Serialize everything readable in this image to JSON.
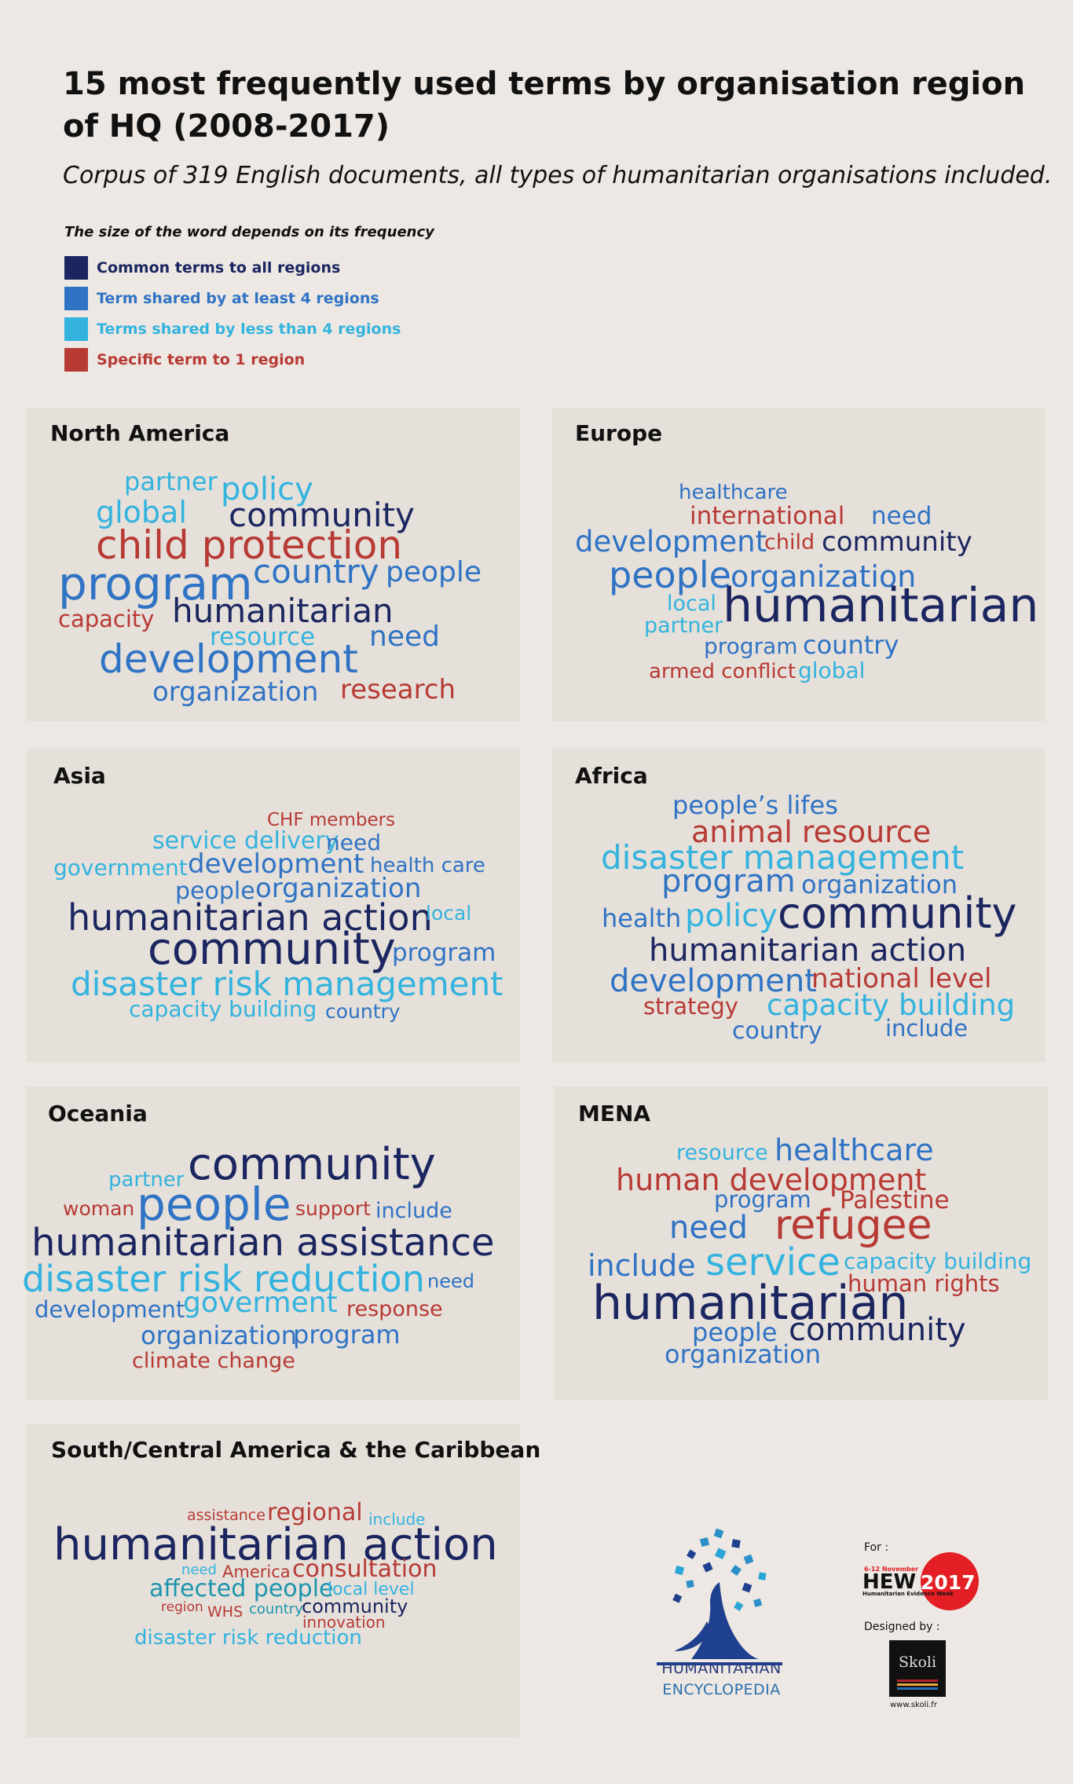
{
  "header": {
    "title": "15 most frequently used terms by organisation region of HQ (2008-2017)",
    "subtitle": "Corpus of 319 English documents, all types of humanitarian organisations included."
  },
  "legend": {
    "note": "The size of the word depends on its frequency",
    "items": [
      {
        "label": "Common terms to all regions",
        "color": "#1b2660"
      },
      {
        "label": "Term shared by at least 4 regions",
        "color": "#2f73c4"
      },
      {
        "label": "Terms shared by less than 4 regions",
        "color": "#33b3de"
      },
      {
        "label": "Specific term to 1 region",
        "color": "#b73a35"
      }
    ]
  },
  "panels": {
    "north_america": {
      "title": "North America",
      "words": [
        "partner",
        "policy",
        "global",
        "community",
        "child protection",
        "program",
        "country",
        "people",
        "capacity",
        "humanitarian",
        "resource",
        "need",
        "development",
        "organization",
        "research"
      ]
    },
    "europe": {
      "title": "Europe",
      "words": [
        "healthcare",
        "international",
        "need",
        "development",
        "child",
        "community",
        "people",
        "organization",
        "local",
        "partner",
        "humanitarian",
        "program",
        "country",
        "armed conflict",
        "global"
      ]
    },
    "asia": {
      "title": "Asia",
      "words": [
        "CHF members",
        "service delivery",
        "need",
        "government",
        "development",
        "health care",
        "people",
        "organization",
        "humanitarian action",
        "local",
        "community",
        "program",
        "disaster risk management",
        "capacity building",
        "country"
      ]
    },
    "africa": {
      "title": "Africa",
      "words": [
        "people’s lifes",
        "animal resource",
        "disaster management",
        "program",
        "organization",
        "health",
        "policy",
        "community",
        "humanitarian action",
        "development",
        "national level",
        "strategy",
        "capacity building",
        "country",
        "include"
      ]
    },
    "oceania": {
      "title": "Oceania",
      "words": [
        "partner",
        "community",
        "woman",
        "people",
        "support",
        "include",
        "humanitarian assistance",
        "disaster risk reduction",
        "need",
        "development",
        "goverment",
        "response",
        "organization",
        "program",
        "climate change"
      ]
    },
    "mena": {
      "title": "MENA",
      "words": [
        "resource",
        "healthcare",
        "human development",
        "program",
        "Palestine",
        "need",
        "refugee",
        "include",
        "service",
        "capacity building",
        "human rights",
        "humanitarian",
        "people",
        "community",
        "organization"
      ]
    },
    "south_central_america": {
      "title": "South/Central America & the Caribbean",
      "words": [
        "assistance",
        "regional",
        "include",
        "humanitarian action",
        "need",
        "America",
        "consultation",
        "affected people",
        "local level",
        "region",
        "WHS",
        "country",
        "community",
        "innovation",
        "disaster risk reduction"
      ]
    }
  },
  "footer": {
    "logo_line1": "HUMANITARIAN",
    "logo_line2": "ENCYCLOPEDIA",
    "for_label": "For :",
    "hew_name": "HEW",
    "hew_year": "2017",
    "hew_dates": "6-12 November",
    "hew_subtitle": "Humanitarian Evidence Week",
    "designed_label": "Designed by :",
    "designer_name": "Skoli",
    "designer_url": "www.skoli.fr"
  }
}
